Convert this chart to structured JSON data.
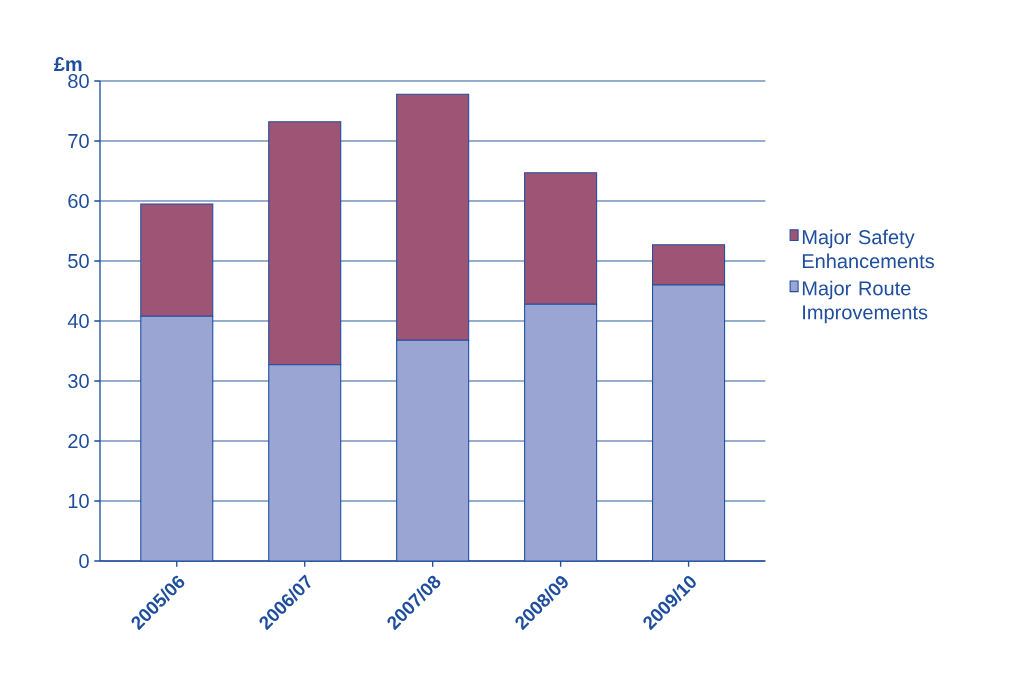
{
  "chart_data": {
    "type": "bar",
    "stacked": true,
    "ylabel": "£m",
    "categories": [
      "2005/06",
      "2006/07",
      "2007/08",
      "2008/09",
      "2009/10"
    ],
    "series": [
      {
        "name": "Major Route Improvements",
        "color": "#9aa5d3",
        "values": [
          40.8,
          32.7,
          36.8,
          42.8,
          46.0
        ]
      },
      {
        "name": "Major Safety Enhancements",
        "color": "#9e5575",
        "values": [
          18.7,
          40.5,
          41.0,
          21.9,
          6.7
        ]
      }
    ],
    "ylim": [
      0,
      80
    ],
    "yticks": [
      0,
      10,
      20,
      30,
      40,
      50,
      60,
      70,
      80
    ],
    "grid": "y",
    "legend": "right"
  }
}
